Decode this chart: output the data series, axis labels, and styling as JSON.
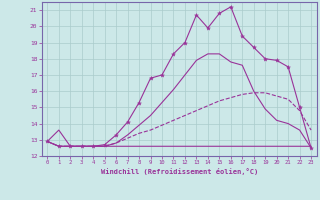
{
  "xlabel": "Windchill (Refroidissement éolien,°C)",
  "bg_color": "#cce8e8",
  "grid_color": "#aacccc",
  "line_color": "#993399",
  "spine_color": "#7766aa",
  "xlim": [
    -0.5,
    23.5
  ],
  "ylim": [
    12,
    21.5
  ],
  "xticks": [
    0,
    1,
    2,
    3,
    4,
    5,
    6,
    7,
    8,
    9,
    10,
    11,
    12,
    13,
    14,
    15,
    16,
    17,
    18,
    19,
    20,
    21,
    22,
    23
  ],
  "yticks": [
    12,
    13,
    14,
    15,
    16,
    17,
    18,
    19,
    20,
    21
  ],
  "line1_x": [
    0,
    1,
    2,
    3,
    4,
    5,
    6,
    7,
    8,
    9,
    10,
    11,
    12,
    13,
    14,
    15,
    16,
    17,
    18,
    19,
    20,
    21,
    22,
    23
  ],
  "line1_y": [
    12.9,
    12.6,
    12.6,
    12.6,
    12.6,
    12.6,
    12.6,
    12.6,
    12.6,
    12.6,
    12.6,
    12.6,
    12.6,
    12.6,
    12.6,
    12.6,
    12.6,
    12.6,
    12.6,
    12.6,
    12.6,
    12.6,
    12.6,
    12.6
  ],
  "line2_x": [
    0,
    1,
    2,
    3,
    4,
    5,
    6,
    7,
    8,
    9,
    10,
    11,
    12,
    13,
    14,
    15,
    16,
    17,
    18,
    19,
    20,
    21,
    22,
    23
  ],
  "line2_y": [
    12.9,
    12.6,
    12.6,
    12.6,
    12.6,
    12.6,
    12.8,
    13.1,
    13.4,
    13.6,
    13.9,
    14.2,
    14.5,
    14.8,
    15.1,
    15.4,
    15.6,
    15.8,
    15.9,
    15.9,
    15.7,
    15.5,
    14.8,
    13.6
  ],
  "line3_x": [
    0,
    1,
    2,
    3,
    4,
    5,
    6,
    7,
    8,
    9,
    10,
    11,
    12,
    13,
    14,
    15,
    16,
    17,
    18,
    19,
    20,
    21,
    22,
    23
  ],
  "line3_y": [
    12.9,
    13.6,
    12.6,
    12.6,
    12.6,
    12.6,
    12.8,
    13.3,
    13.9,
    14.5,
    15.3,
    16.1,
    17.0,
    17.9,
    18.3,
    18.3,
    17.8,
    17.6,
    16.0,
    14.9,
    14.2,
    14.0,
    13.6,
    12.5
  ],
  "line4_x": [
    0,
    1,
    2,
    3,
    4,
    5,
    6,
    7,
    8,
    9,
    10,
    11,
    12,
    13,
    14,
    15,
    16,
    17,
    18,
    19,
    20,
    21,
    22,
    23
  ],
  "line4_y": [
    12.9,
    12.6,
    12.6,
    12.6,
    12.6,
    12.7,
    13.3,
    14.1,
    15.3,
    16.8,
    17.0,
    18.3,
    19.0,
    20.7,
    19.9,
    20.8,
    21.2,
    19.4,
    18.7,
    18.0,
    17.9,
    17.5,
    15.0,
    12.5
  ]
}
